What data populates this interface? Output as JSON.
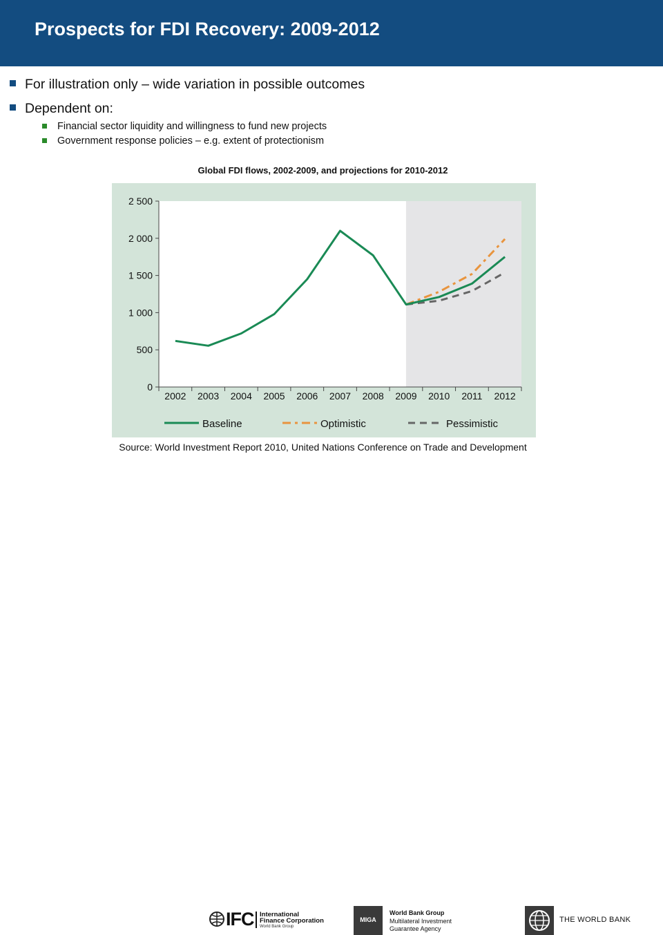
{
  "header": {
    "title": "Prospects for FDI Recovery: 2009-2012"
  },
  "bullets": [
    {
      "text": "For illustration only – wide variation in possible outcomes",
      "subitems": []
    },
    {
      "text": "Dependent on:",
      "subitems": [
        "Financial sector liquidity and willingness to fund new projects",
        "Government response policies – e.g. extent of protectionism"
      ]
    }
  ],
  "chart_title": "Global FDI flows, 2002-2009, and projections for 2010-2012",
  "chart_data": {
    "type": "line",
    "categories": [
      "2002",
      "2003",
      "2004",
      "2005",
      "2006",
      "2007",
      "2008",
      "2009",
      "2010",
      "2011",
      "2012"
    ],
    "yticks": [
      "0",
      "500",
      "1 000",
      "1 500",
      "2 000",
      "2 500"
    ],
    "ylim": [
      0,
      2500
    ],
    "projection_region": [
      "2009",
      "2012"
    ],
    "legend_position": "bottom",
    "grid": false,
    "series": [
      {
        "name": "Baseline",
        "color": "#1a8a55",
        "style": "solid",
        "values": [
          620,
          555,
          720,
          980,
          1450,
          2100,
          1770,
          1110,
          1210,
          1390,
          1750
        ]
      },
      {
        "name": "Optimistic",
        "color": "#e8943e",
        "style": "dash-dot",
        "values": [
          null,
          null,
          null,
          null,
          null,
          null,
          null,
          1110,
          1280,
          1520,
          1990
        ]
      },
      {
        "name": "Pessimistic",
        "color": "#666666",
        "style": "dash",
        "values": [
          null,
          null,
          null,
          null,
          null,
          null,
          null,
          1110,
          1160,
          1290,
          1540
        ]
      }
    ]
  },
  "source": "Source: World Investment Report 2010, United Nations Conference on Trade and Development",
  "footer": {
    "ifc_word": "IFC",
    "ifc_name_line1": "International",
    "ifc_name_line2": "Finance Corporation",
    "ifc_sub": "World Bank Group",
    "miga_logo": "MIGA",
    "miga_line1": "World Bank Group",
    "miga_line2": "Multilateral Investment",
    "miga_line3": "Guarantee Agency",
    "wb_name": "THE WORLD BANK"
  }
}
